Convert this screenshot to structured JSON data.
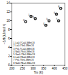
{
  "chart_data": {
    "type": "scatter",
    "x_label": "Tm (K)",
    "y_label": "−ΔH (kJ mol⁻¹)",
    "x": [
      290,
      265,
      310,
      360,
      375,
      410,
      420,
      430
    ],
    "values": [
      11,
      9.8,
      10.5,
      9,
      10,
      11.5,
      10,
      12.8
    ],
    "point_labels": [
      "1",
      "2",
      "3",
      "4",
      "5",
      "6",
      "7",
      "8"
    ],
    "annotations": [
      "1 La0.7Ca0.3MnO3",
      "2 La0.7Sr0.3MnO3",
      "3 Pr0.7Ca0.3MnO3",
      "4 Nd0.7Sr0.3MnO3",
      "5 Sm0.7Sr0.3MnO3",
      "6 La0.7Ba0.3MnO3",
      "7 Pr0.7Sr0.3MnO3",
      "8 Nd0.7Ba0.3MnO3"
    ],
    "xlim": [
      200,
      450
    ],
    "ylim": [
      0,
      14
    ],
    "xticks": [
      200,
      250,
      300,
      350,
      400,
      450
    ],
    "yticks": [
      0,
      2,
      4,
      6,
      8,
      10,
      12,
      14
    ],
    "color": "#333333",
    "marker": "circle"
  }
}
